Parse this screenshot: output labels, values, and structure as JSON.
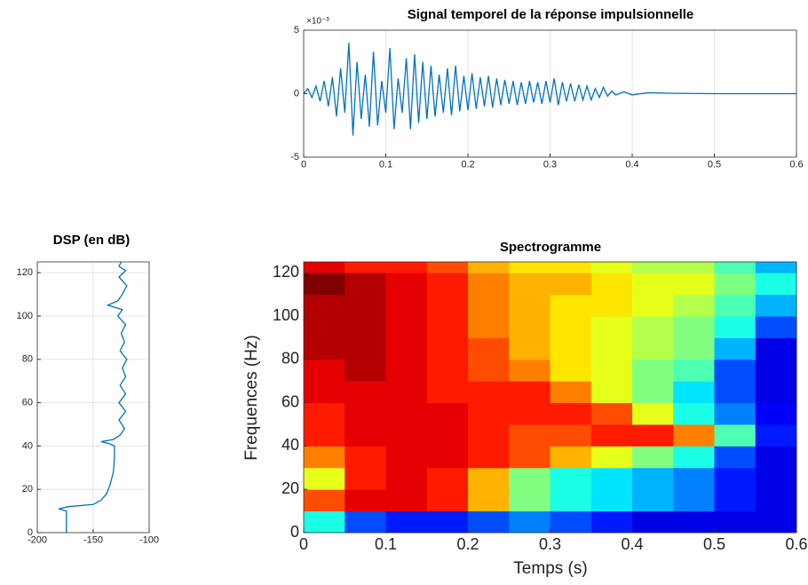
{
  "chart_data": [
    {
      "type": "line",
      "title": "Signal temporel de la réponse impulsionnelle",
      "y_multiplier": "×10⁻³",
      "color": "#0072bd",
      "grid": true,
      "xlim": [
        0,
        0.6
      ],
      "xticks": [
        0,
        0.1,
        0.2,
        0.3,
        0.4,
        0.5,
        0.6
      ],
      "ylim": [
        -5,
        5
      ],
      "yticks": [
        -5,
        0,
        5
      ],
      "x": [
        0,
        0.005,
        0.01,
        0.015,
        0.02,
        0.025,
        0.03,
        0.035,
        0.04,
        0.045,
        0.05,
        0.055,
        0.06,
        0.065,
        0.07,
        0.075,
        0.08,
        0.085,
        0.09,
        0.095,
        0.1,
        0.105,
        0.11,
        0.115,
        0.12,
        0.125,
        0.13,
        0.135,
        0.14,
        0.145,
        0.15,
        0.155,
        0.16,
        0.165,
        0.17,
        0.175,
        0.18,
        0.185,
        0.19,
        0.195,
        0.2,
        0.205,
        0.21,
        0.215,
        0.22,
        0.225,
        0.23,
        0.235,
        0.24,
        0.245,
        0.25,
        0.255,
        0.26,
        0.265,
        0.27,
        0.275,
        0.28,
        0.285,
        0.29,
        0.295,
        0.3,
        0.305,
        0.31,
        0.315,
        0.32,
        0.325,
        0.33,
        0.335,
        0.34,
        0.345,
        0.35,
        0.355,
        0.36,
        0.365,
        0.37,
        0.375,
        0.38,
        0.39,
        0.4,
        0.42,
        0.45,
        0.5,
        0.55,
        0.6
      ],
      "values": [
        0,
        0.4,
        -0.3,
        0.6,
        -0.6,
        1,
        -1,
        1.3,
        -1.8,
        2,
        -1.5,
        4,
        -3.3,
        2.5,
        -2,
        1.5,
        -2.6,
        3.3,
        -2.5,
        1,
        -1.5,
        3.6,
        -2.8,
        1.2,
        -1.5,
        2.8,
        -2.8,
        3.1,
        -2.3,
        2.5,
        -2,
        2.2,
        -1.8,
        1.5,
        -1.5,
        2,
        -1.7,
        2.2,
        -1.4,
        1.4,
        -1.3,
        1.6,
        -1.2,
        1.3,
        -1,
        1.4,
        -1.1,
        1.2,
        -0.9,
        1.1,
        -0.8,
        1,
        -0.9,
        0.9,
        -0.8,
        1,
        -0.7,
        0.9,
        -0.8,
        1,
        -0.7,
        1.2,
        -0.9,
        0.9,
        -0.6,
        0.8,
        -0.6,
        0.7,
        -0.5,
        0.6,
        -0.5,
        0.4,
        -0.3,
        0.5,
        -0.2,
        0.2,
        -0.1,
        0.15,
        -0.1,
        0.08,
        0.03,
        0,
        0,
        0
      ]
    },
    {
      "type": "line",
      "orientation": "vertical",
      "title": "DSP (en dB)",
      "color": "#0072bd",
      "grid": true,
      "xlim": [
        -200,
        -100
      ],
      "xticks": [
        -200,
        -150,
        -100
      ],
      "ylim": [
        0,
        125
      ],
      "yticks": [
        0,
        20,
        40,
        60,
        80,
        100,
        120
      ],
      "y": [
        0,
        5,
        10,
        11,
        12,
        13,
        15,
        18,
        22,
        28,
        35,
        40,
        41,
        42,
        43,
        45,
        48,
        52,
        56,
        60,
        64,
        68,
        72,
        76,
        80,
        84,
        88,
        92,
        96,
        100,
        103,
        105,
        107,
        110,
        114,
        118,
        121,
        123,
        125
      ],
      "values": [
        -174,
        -174,
        -174,
        -181,
        -172,
        -150,
        -143,
        -138,
        -135,
        -132,
        -131,
        -131,
        -135,
        -143,
        -132,
        -126,
        -122,
        -127,
        -121,
        -127,
        -121,
        -126,
        -121,
        -124,
        -120,
        -126,
        -122,
        -125,
        -121,
        -128,
        -124,
        -137,
        -128,
        -124,
        -120,
        -127,
        -121,
        -127,
        -125
      ]
    },
    {
      "type": "heatmap",
      "title": "Spectrogramme",
      "xlabel": "Temps (s)",
      "ylabel": "Frequences (Hz)",
      "colormap": "jet",
      "zlim": [
        0,
        1
      ],
      "xlim": [
        0,
        0.6
      ],
      "xticks": [
        0,
        0.1,
        0.2,
        0.3,
        0.4,
        0.5,
        0.6
      ],
      "ylim": [
        0,
        125
      ],
      "yticks": [
        0,
        20,
        40,
        60,
        80,
        100,
        120
      ],
      "x_bins": [
        0,
        0.05,
        0.1,
        0.15,
        0.2,
        0.25,
        0.3,
        0.35,
        0.4,
        0.45,
        0.5,
        0.55,
        0.6
      ],
      "y_bins": [
        0,
        10,
        20,
        30,
        40,
        50,
        60,
        70,
        80,
        90,
        100,
        110,
        120,
        125
      ],
      "z": [
        [
          0.4,
          0.2,
          0.15,
          0.15,
          0.2,
          0.25,
          0.2,
          0.15,
          0.1,
          0.1,
          0.1,
          0.1
        ],
        [
          0.8,
          0.9,
          0.9,
          0.85,
          0.7,
          0.5,
          0.4,
          0.35,
          0.3,
          0.25,
          0.15,
          0.1
        ],
        [
          0.6,
          0.85,
          0.9,
          0.85,
          0.7,
          0.5,
          0.4,
          0.35,
          0.3,
          0.25,
          0.15,
          0.1
        ],
        [
          0.75,
          0.85,
          0.9,
          0.9,
          0.85,
          0.8,
          0.7,
          0.6,
          0.5,
          0.4,
          0.2,
          0.1
        ],
        [
          0.85,
          0.9,
          0.9,
          0.9,
          0.85,
          0.8,
          0.8,
          0.85,
          0.85,
          0.75,
          0.45,
          0.15
        ],
        [
          0.85,
          0.9,
          0.9,
          0.9,
          0.85,
          0.85,
          0.85,
          0.8,
          0.6,
          0.4,
          0.25,
          0.12
        ],
        [
          0.9,
          0.9,
          0.9,
          0.85,
          0.85,
          0.85,
          0.75,
          0.6,
          0.5,
          0.35,
          0.2,
          0.1
        ],
        [
          0.9,
          0.95,
          0.9,
          0.85,
          0.8,
          0.75,
          0.65,
          0.6,
          0.5,
          0.45,
          0.2,
          0.1
        ],
        [
          0.95,
          0.95,
          0.9,
          0.85,
          0.8,
          0.7,
          0.65,
          0.6,
          0.55,
          0.5,
          0.3,
          0.1
        ],
        [
          0.95,
          0.95,
          0.9,
          0.85,
          0.75,
          0.7,
          0.65,
          0.6,
          0.55,
          0.5,
          0.4,
          0.2
        ],
        [
          0.95,
          0.95,
          0.9,
          0.85,
          0.75,
          0.7,
          0.65,
          0.65,
          0.6,
          0.55,
          0.45,
          0.3
        ],
        [
          1,
          0.95,
          0.9,
          0.85,
          0.75,
          0.7,
          0.7,
          0.65,
          0.6,
          0.6,
          0.5,
          0.4
        ],
        [
          0.9,
          0.85,
          0.85,
          0.8,
          0.7,
          0.65,
          0.65,
          0.6,
          0.55,
          0.55,
          0.45,
          0.3
        ]
      ]
    }
  ]
}
